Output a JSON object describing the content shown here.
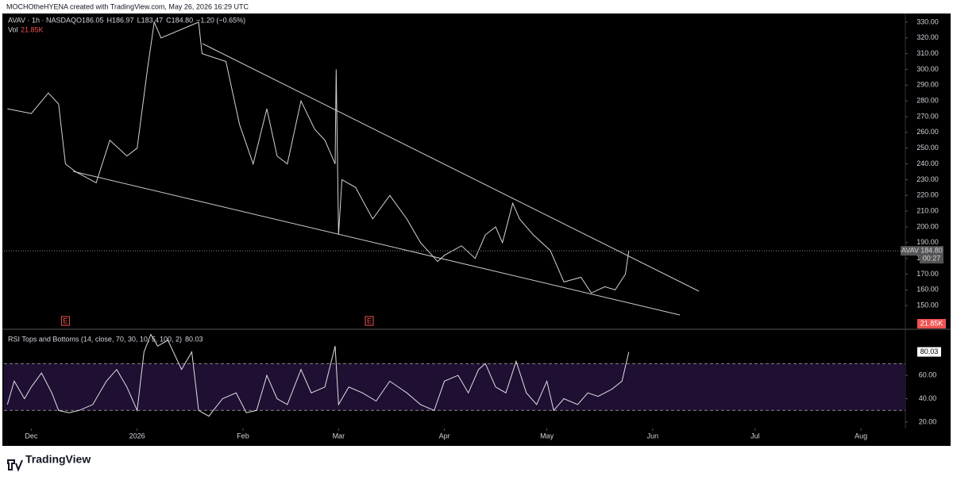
{
  "header": {
    "credit": "MOCHOtheHYENA created with TradingView.com, May 26, 2026 16:29 UTC",
    "brand": "TradingView"
  },
  "chart_data": [
    {
      "type": "line",
      "title": "AVAV · 1h · NASDAQ",
      "info": [
        "O186.05",
        "H186.97",
        "L183.47",
        "C184.80",
        "−1.20 (−0.65%)"
      ],
      "volume_label": "Vol",
      "volume_value": "21.85K",
      "symbol_tag": "AVAV",
      "last_price": {
        "value": 184.8,
        "label": "184.80"
      },
      "countdown": "00:27",
      "events": [
        {
          "x": 10,
          "label": "E"
        },
        {
          "x": 99,
          "label": "E"
        }
      ],
      "color": "#d1d4dc",
      "x": [
        -7,
        0,
        5,
        8,
        10,
        13,
        19,
        23,
        28,
        31,
        34,
        36,
        38,
        49,
        50,
        57,
        61,
        65,
        69,
        72,
        75,
        79,
        83,
        86,
        89,
        89.3,
        90,
        91,
        95,
        100,
        105,
        110,
        114,
        119,
        121,
        126,
        130,
        133,
        136,
        138,
        141,
        143,
        147,
        152,
        154,
        156,
        161,
        164,
        168,
        171,
        174,
        175
      ],
      "values": [
        275,
        272,
        285,
        278,
        240,
        235,
        228,
        255,
        245,
        250,
        300,
        330,
        320,
        330,
        310,
        305,
        265,
        240,
        275,
        245,
        240,
        280,
        262,
        255,
        240,
        300,
        195,
        230,
        225,
        205,
        220,
        205,
        190,
        178,
        182,
        188,
        180,
        195,
        200,
        190,
        215,
        205,
        195,
        185,
        175,
        165,
        168,
        158,
        162,
        160,
        170,
        185
      ],
      "xlim": [
        -8,
        256
      ],
      "ylim": [
        136,
        335
      ],
      "yticks": [
        {
          "value": 150,
          "label": "150.00"
        },
        {
          "value": 160,
          "label": "160.00"
        },
        {
          "value": 170,
          "label": "170.00"
        },
        {
          "value": 180,
          "label": "180.00"
        },
        {
          "value": 190,
          "label": "190.00"
        },
        {
          "value": 200,
          "label": "200.00"
        },
        {
          "value": 210,
          "label": "210.00"
        },
        {
          "value": 220,
          "label": "220.00"
        },
        {
          "value": 230,
          "label": "230.00"
        },
        {
          "value": 240,
          "label": "240.00"
        },
        {
          "value": 250,
          "label": "250.00"
        },
        {
          "value": 260,
          "label": "260.00"
        },
        {
          "value": 270,
          "label": "270.00"
        },
        {
          "value": 280,
          "label": "280.00"
        },
        {
          "value": 290,
          "label": "290.00"
        },
        {
          "value": 300,
          "label": "300.00"
        },
        {
          "value": 310,
          "label": "310.00"
        },
        {
          "value": 320,
          "label": "320.00"
        },
        {
          "value": 330,
          "label": "330.00"
        }
      ]
    },
    {
      "type": "line",
      "title": "RSI Tops and Bottoms (14, close, 70, 30, 10, 5, 100, 2)",
      "last": 80.03,
      "color": "#e0e0e0",
      "bands": [
        30,
        70
      ],
      "band_color": "#1e0f33",
      "x": [
        -7,
        -5,
        -2,
        0,
        3,
        6,
        8,
        11,
        14,
        18,
        22,
        25,
        28,
        31,
        33,
        35,
        37,
        40,
        44,
        47,
        49,
        52,
        56,
        60,
        63,
        66,
        69,
        72,
        75,
        79,
        82,
        86,
        89,
        90,
        93,
        97,
        101,
        105,
        110,
        114,
        118,
        121,
        125,
        128,
        131,
        133,
        136,
        139,
        142,
        145,
        148,
        151,
        153,
        156,
        160,
        163,
        166,
        170,
        173,
        175
      ],
      "values": [
        35,
        55,
        40,
        50,
        62,
        45,
        30,
        28,
        30,
        35,
        55,
        65,
        50,
        30,
        80,
        95,
        85,
        90,
        65,
        80,
        30,
        25,
        40,
        45,
        28,
        30,
        60,
        40,
        35,
        65,
        45,
        50,
        85,
        35,
        50,
        45,
        38,
        55,
        45,
        35,
        30,
        55,
        60,
        45,
        65,
        70,
        50,
        45,
        72,
        45,
        35,
        55,
        30,
        40,
        35,
        45,
        42,
        48,
        55,
        80
      ],
      "xlim": [
        -8,
        256
      ],
      "ylim": [
        1,
        96
      ],
      "yticks": [
        {
          "value": 20,
          "label": "20.00"
        },
        {
          "value": 40,
          "label": "40.00"
        },
        {
          "value": 60,
          "label": "60.00"
        }
      ],
      "xticks": [
        {
          "value": 0,
          "label": "Dec"
        },
        {
          "value": 31,
          "label": "2026"
        },
        {
          "value": 62,
          "label": "Feb"
        },
        {
          "value": 90,
          "label": "Mar"
        },
        {
          "value": 121,
          "label": "Apr"
        },
        {
          "value": 151,
          "label": "May"
        },
        {
          "value": 182,
          "label": "Jun"
        },
        {
          "value": 212,
          "label": "Jul"
        },
        {
          "value": 243,
          "label": "Aug"
        }
      ]
    }
  ]
}
